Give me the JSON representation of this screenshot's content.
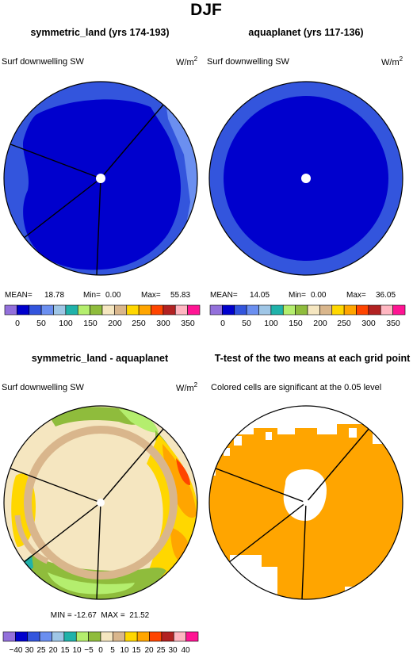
{
  "figure": {
    "title": "DJF"
  },
  "panels": {
    "p1": {
      "title": "symmetric_land (yrs 174-193)",
      "variable": "Surf downwelling SW",
      "units": "W/m",
      "units_exp": "2",
      "stats": {
        "mean_label": "MEAN=",
        "mean": "18.78",
        "min_label": "Min=",
        "min": "0.00",
        "max_label": "Max=",
        "max": "55.83"
      }
    },
    "p2": {
      "title": "aquaplanet (yrs 117-136)",
      "variable": "Surf downwelling SW",
      "units": "W/m",
      "units_exp": "2",
      "stats": {
        "mean_label": "MEAN=",
        "mean": "14.05",
        "min_label": "Min=",
        "min": "0.00",
        "max_label": "Max=",
        "max": "36.05"
      }
    },
    "p3": {
      "title": "symmetric_land - aquaplanet",
      "variable": "Surf downwelling SW",
      "units": "W/m",
      "units_exp": "2",
      "stats_text": "MIN = -12.67  MAX =  21.52"
    },
    "p4": {
      "title": "T-test of the two means at each grid point",
      "subtitle": "Colored cells are significant at the 0.05 level"
    }
  },
  "colorbar_abs": {
    "colors": [
      "#9370db",
      "#0000cd",
      "#3355dd",
      "#6b8ff0",
      "#9fc6e6",
      "#20b2aa",
      "#b4ee6e",
      "#8fbc3c",
      "#f5e6c0",
      "#d9b68c",
      "#ffd700",
      "#ffa500",
      "#ff4500",
      "#b22222",
      "#ffb6c1",
      "#ff1493"
    ],
    "labels": [
      "0",
      "50",
      "100",
      "150",
      "200",
      "250",
      "300",
      "350"
    ]
  },
  "colorbar_diff": {
    "colors": [
      "#9370db",
      "#0000cd",
      "#3355dd",
      "#6b8ff0",
      "#9fc6e6",
      "#20b2aa",
      "#b4ee6e",
      "#8fbc3c",
      "#f5e6c0",
      "#d9b68c",
      "#ffd700",
      "#ffa500",
      "#ff4500",
      "#b22222",
      "#ffb6c1",
      "#ff1493"
    ],
    "labels": [
      "−40",
      "30",
      "25",
      "20",
      "15",
      "10",
      "−5",
      "0",
      "5",
      "10",
      "15",
      "20",
      "25",
      "30",
      "40"
    ]
  },
  "colors": {
    "dark_blue": "#0000cd",
    "mid_blue": "#3355dd",
    "light_blue": "#6b8ff0",
    "cream": "#f5e6c0",
    "tan": "#d9b68c",
    "yellow": "#ffd700",
    "orange": "#ffa500",
    "red_orange": "#ff4500",
    "green": "#8fbc3c",
    "teal": "#20b2aa",
    "significant": "#ffa500"
  }
}
